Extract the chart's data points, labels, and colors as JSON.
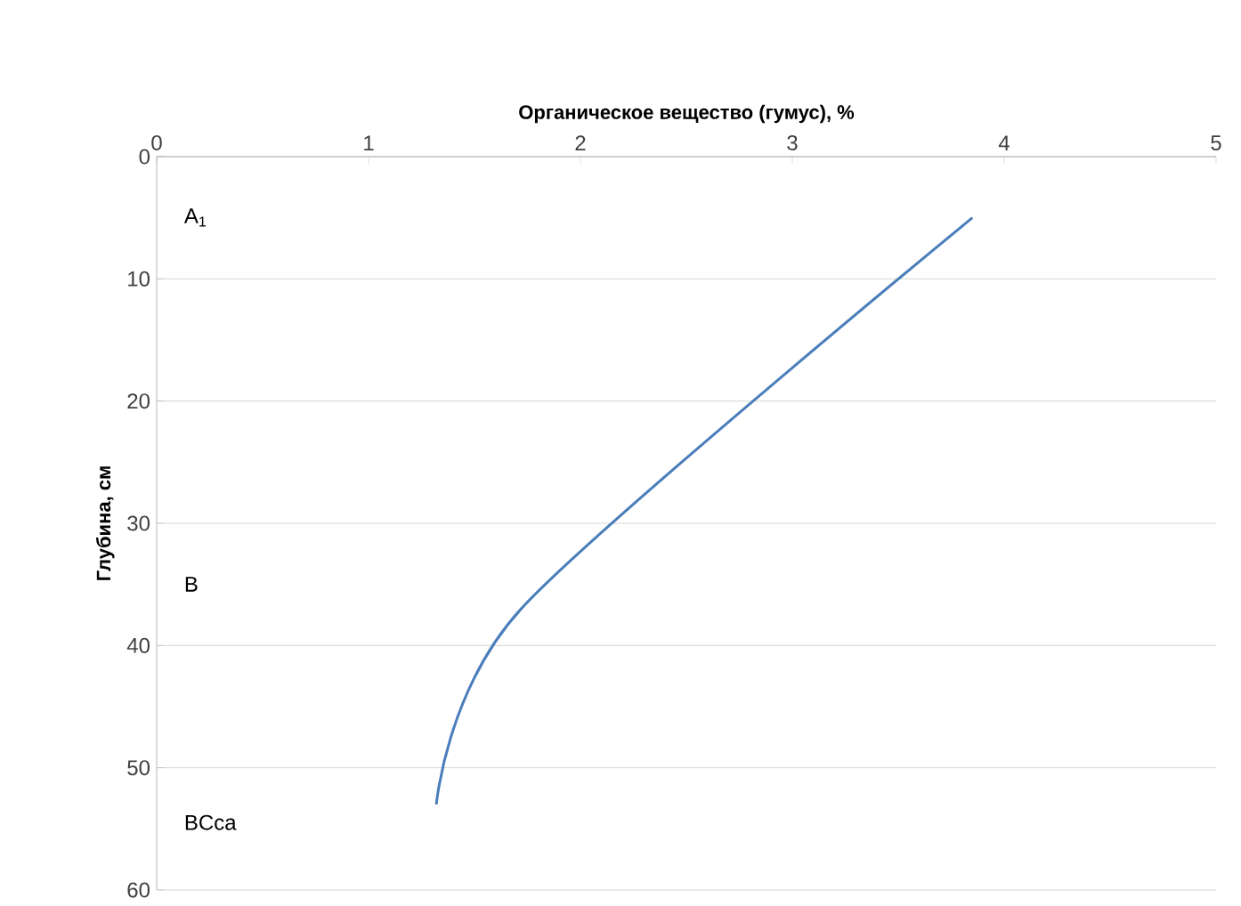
{
  "chart_data": {
    "type": "line",
    "xlabel": "Органическое вещество (гумус), %",
    "ylabel": "Глубина, см",
    "x": [
      3.85,
      1.72,
      1.32
    ],
    "series": [
      {
        "color": "#4a7ebb",
        "values": [
          5,
          37,
          53
        ]
      }
    ],
    "xlim": [
      0,
      5
    ],
    "xticks": [
      0,
      1,
      2,
      3,
      4,
      5
    ],
    "ylim": [
      60,
      0
    ],
    "yticks": [
      0,
      10,
      20,
      30,
      40,
      50,
      60
    ],
    "grid": "y",
    "marker": "none",
    "line_style": "solid",
    "annotations": [
      "A$_{1}$",
      "B",
      "BCca"
    ]
  }
}
